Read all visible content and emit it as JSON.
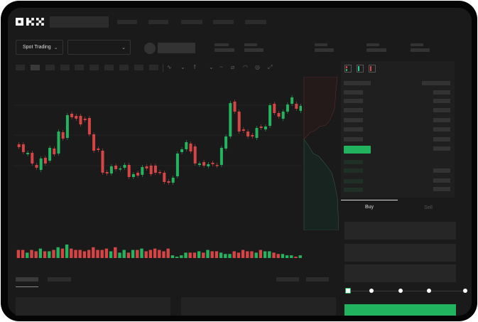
{
  "header": {
    "logo_text": "OKX"
  },
  "market": {
    "mode_selector": "Spot Trading",
    "pair_selector": ""
  },
  "orderbook": {
    "view_icons": [
      "orderbook-both-icon",
      "orderbook-bids-icon",
      "orderbook-asks-icon"
    ]
  },
  "trade_form": {
    "tabs": [
      {
        "label": "Buy",
        "active": true
      },
      {
        "label": "Sell",
        "active": false
      }
    ],
    "leverage_slider_value": 0
  },
  "colors": {
    "up": "#26b35f",
    "down": "#d64545",
    "accent": "#22b35e",
    "background": "#1a1a1a"
  },
  "chart_data": {
    "type": "candlestick",
    "note_axes": "no axes printed",
    "candles": [
      [
        97,
        93
      ],
      [
        97,
        86
      ],
      [
        83,
        85
      ],
      [
        85,
        70
      ],
      [
        68,
        64
      ],
      [
        61,
        77
      ],
      [
        78,
        70
      ],
      [
        74,
        92
      ],
      [
        91,
        83
      ],
      [
        84,
        115
      ],
      [
        114,
        105
      ],
      [
        106,
        138
      ],
      [
        140,
        135
      ],
      [
        137,
        133
      ],
      [
        137,
        125
      ],
      [
        133,
        131
      ],
      [
        134,
        111
      ],
      [
        111,
        88
      ],
      [
        91,
        89
      ],
      [
        88,
        57
      ],
      [
        58,
        56
      ],
      [
        56,
        66
      ],
      [
        67,
        62
      ],
      [
        62,
        63
      ],
      [
        64,
        68
      ],
      [
        68,
        51
      ],
      [
        51,
        55
      ],
      [
        57,
        53
      ],
      [
        54,
        65
      ],
      [
        66,
        63
      ],
      [
        67,
        55
      ],
      [
        67,
        57
      ],
      [
        58,
        57
      ],
      [
        57,
        44
      ],
      [
        45,
        43
      ],
      [
        43,
        50
      ],
      [
        52,
        84
      ],
      [
        86,
        90
      ],
      [
        90,
        100
      ],
      [
        98,
        87
      ],
      [
        94,
        70
      ],
      [
        68,
        70
      ],
      [
        72,
        67
      ],
      [
        66,
        69
      ],
      [
        71,
        69
      ],
      [
        68,
        67
      ],
      [
        68,
        92
      ],
      [
        91,
        108
      ],
      [
        108,
        155
      ],
      [
        157,
        143
      ],
      [
        143,
        115
      ],
      [
        118,
        116
      ],
      [
        115,
        108
      ],
      [
        110,
        108
      ],
      [
        106,
        120
      ],
      [
        122,
        120
      ],
      [
        118,
        122
      ],
      [
        123,
        152
      ],
      [
        154,
        141
      ],
      [
        141,
        136
      ],
      [
        133,
        143
      ],
      [
        143,
        153
      ],
      [
        154,
        163
      ],
      [
        154,
        147
      ],
      [
        144,
        151
      ]
    ],
    "volume": [
      6,
      6,
      4,
      6,
      5,
      7,
      5,
      5,
      6,
      8,
      7,
      10,
      7,
      6,
      6,
      5,
      6,
      8,
      6,
      6,
      7,
      5,
      8,
      4,
      6,
      4,
      6,
      6,
      7,
      5,
      6,
      7,
      6,
      5,
      7,
      2,
      1,
      2,
      4,
      4,
      4,
      5,
      4,
      6,
      5,
      5,
      4,
      3,
      3,
      5,
      4,
      6,
      5,
      5,
      4,
      6,
      5,
      5,
      4,
      3,
      3,
      2,
      2,
      1,
      2
    ]
  }
}
